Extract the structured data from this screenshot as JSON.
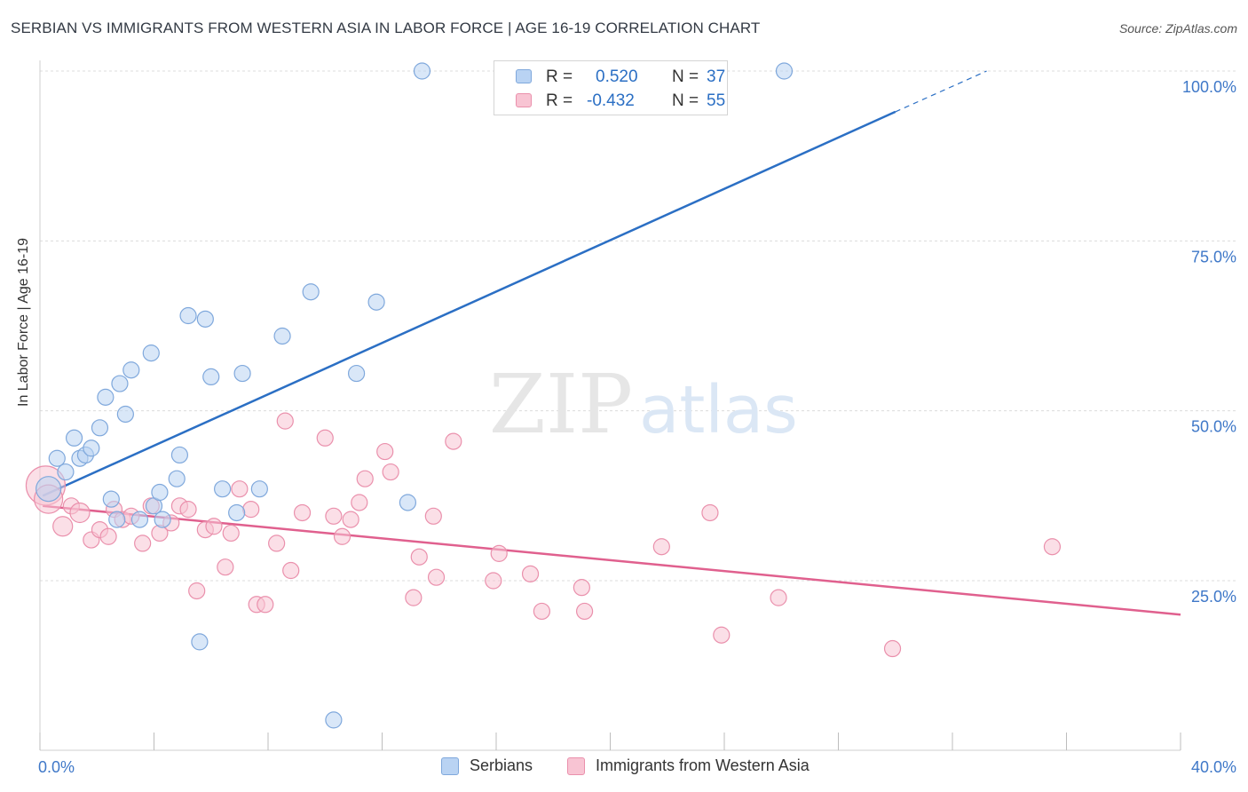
{
  "title": "SERBIAN VS IMMIGRANTS FROM WESTERN ASIA IN LABOR FORCE | AGE 16-19 CORRELATION CHART",
  "source": "Source: ZipAtlas.com",
  "watermark": {
    "zip": "ZIP",
    "atlas": "atlas"
  },
  "legend": {
    "r_label": "R =",
    "n_label": "N =",
    "serbians": {
      "r": "0.520",
      "n": "37"
    },
    "immigrants": {
      "r": "-0.432",
      "n": "55"
    }
  },
  "bottom_legend": {
    "serbians": "Serbians",
    "immigrants": "Immigrants from Western Asia"
  },
  "colors": {
    "serbians_fill": "#b9d3f3",
    "serbians_stroke": "#7fa8dc",
    "serbians_line": "#2b6fc4",
    "immigrants_fill": "#f8c4d3",
    "immigrants_stroke": "#ea90ac",
    "immigrants_line": "#e0608e",
    "tick_label": "#3f78c8",
    "grid": "#dcdcdc"
  },
  "chart_data": {
    "type": "scatter",
    "title": "SERBIAN VS IMMIGRANTS FROM WESTERN ASIA IN LABOR FORCE | AGE 16-19 CORRELATION CHART",
    "xlabel": "",
    "ylabel": "In Labor Force | Age 16-19",
    "xlim": [
      0,
      40
    ],
    "ylim": [
      0,
      102
    ],
    "x_tick_labels": [
      "0.0%",
      "40.0%"
    ],
    "y_ticks": [
      25,
      50,
      75,
      100
    ],
    "y_tick_labels": [
      "25.0%",
      "50.0%",
      "75.0%",
      "100.0%"
    ],
    "grid": true,
    "legend_position": "top-center",
    "series": [
      {
        "name": "Serbians",
        "points": [
          [
            0.3,
            38.5,
            14
          ],
          [
            0.6,
            43,
            9
          ],
          [
            0.9,
            41,
            9
          ],
          [
            1.2,
            46,
            9
          ],
          [
            1.4,
            43,
            9
          ],
          [
            1.6,
            43.5,
            9
          ],
          [
            1.8,
            44.5,
            9
          ],
          [
            2.1,
            47.5,
            9
          ],
          [
            2.3,
            52,
            9
          ],
          [
            2.5,
            37,
            9
          ],
          [
            2.7,
            34,
            9
          ],
          [
            2.8,
            54,
            9
          ],
          [
            3.0,
            49.5,
            9
          ],
          [
            3.2,
            56,
            9
          ],
          [
            3.5,
            34,
            9
          ],
          [
            3.9,
            58.5,
            9
          ],
          [
            4.0,
            36,
            9
          ],
          [
            4.2,
            38,
            9
          ],
          [
            4.3,
            34,
            9
          ],
          [
            4.8,
            40,
            9
          ],
          [
            4.9,
            43.5,
            9
          ],
          [
            5.2,
            64,
            9
          ],
          [
            5.6,
            16,
            9
          ],
          [
            5.8,
            63.5,
            9
          ],
          [
            6.0,
            55,
            9
          ],
          [
            6.4,
            38.5,
            9
          ],
          [
            6.9,
            35,
            9
          ],
          [
            7.1,
            55.5,
            9
          ],
          [
            7.7,
            38.5,
            9
          ],
          [
            8.5,
            61,
            9
          ],
          [
            9.5,
            67.5,
            9
          ],
          [
            10.3,
            4.5,
            9
          ],
          [
            11.1,
            55.5,
            9
          ],
          [
            11.8,
            66,
            9
          ],
          [
            12.9,
            36.5,
            9
          ],
          [
            13.4,
            100,
            9
          ],
          [
            26.1,
            100,
            9
          ]
        ],
        "trend": {
          "x": [
            0.1,
            30.0
          ],
          "y": [
            37.5,
            94.0
          ],
          "dashed_to": [
            33.2,
            100.0
          ]
        }
      },
      {
        "name": "Immigrants from Western Asia",
        "points": [
          [
            0.2,
            39,
            22
          ],
          [
            0.3,
            37,
            16
          ],
          [
            0.8,
            33,
            11
          ],
          [
            1.1,
            36,
            9
          ],
          [
            1.4,
            35,
            11
          ],
          [
            1.8,
            31,
            9
          ],
          [
            2.1,
            32.5,
            9
          ],
          [
            2.4,
            31.5,
            9
          ],
          [
            2.6,
            35.5,
            9
          ],
          [
            2.9,
            34,
            9
          ],
          [
            3.2,
            34.5,
            9
          ],
          [
            3.6,
            30.5,
            9
          ],
          [
            3.9,
            36,
            9
          ],
          [
            4.2,
            32,
            9
          ],
          [
            4.6,
            33.5,
            9
          ],
          [
            4.9,
            36,
            9
          ],
          [
            5.2,
            35.5,
            9
          ],
          [
            5.5,
            23.5,
            9
          ],
          [
            5.8,
            32.5,
            9
          ],
          [
            6.1,
            33,
            9
          ],
          [
            6.5,
            27,
            9
          ],
          [
            6.7,
            32,
            9
          ],
          [
            7.0,
            38.5,
            9
          ],
          [
            7.4,
            35.5,
            9
          ],
          [
            7.6,
            21.5,
            9
          ],
          [
            7.9,
            21.5,
            9
          ],
          [
            8.3,
            30.5,
            9
          ],
          [
            8.6,
            48.5,
            9
          ],
          [
            8.8,
            26.5,
            9
          ],
          [
            9.2,
            35,
            9
          ],
          [
            10.0,
            46,
            9
          ],
          [
            10.3,
            34.5,
            9
          ],
          [
            10.6,
            31.5,
            9
          ],
          [
            10.9,
            34,
            9
          ],
          [
            11.2,
            36.5,
            9
          ],
          [
            11.4,
            40,
            9
          ],
          [
            12.1,
            44,
            9
          ],
          [
            12.3,
            41,
            9
          ],
          [
            13.1,
            22.5,
            9
          ],
          [
            13.3,
            28.5,
            9
          ],
          [
            13.8,
            34.5,
            9
          ],
          [
            13.9,
            25.5,
            9
          ],
          [
            14.5,
            45.5,
            9
          ],
          [
            15.9,
            25,
            9
          ],
          [
            16.1,
            29,
            9
          ],
          [
            17.2,
            26,
            9
          ],
          [
            17.6,
            20.5,
            9
          ],
          [
            19.0,
            24,
            9
          ],
          [
            19.1,
            20.5,
            9
          ],
          [
            21.8,
            30,
            9
          ],
          [
            23.5,
            35,
            9
          ],
          [
            23.9,
            17,
            9
          ],
          [
            25.9,
            22.5,
            9
          ],
          [
            29.9,
            15,
            9
          ],
          [
            35.5,
            30,
            9
          ]
        ],
        "trend": {
          "x": [
            0.1,
            40.0
          ],
          "y": [
            36.0,
            20.0
          ]
        }
      }
    ]
  }
}
